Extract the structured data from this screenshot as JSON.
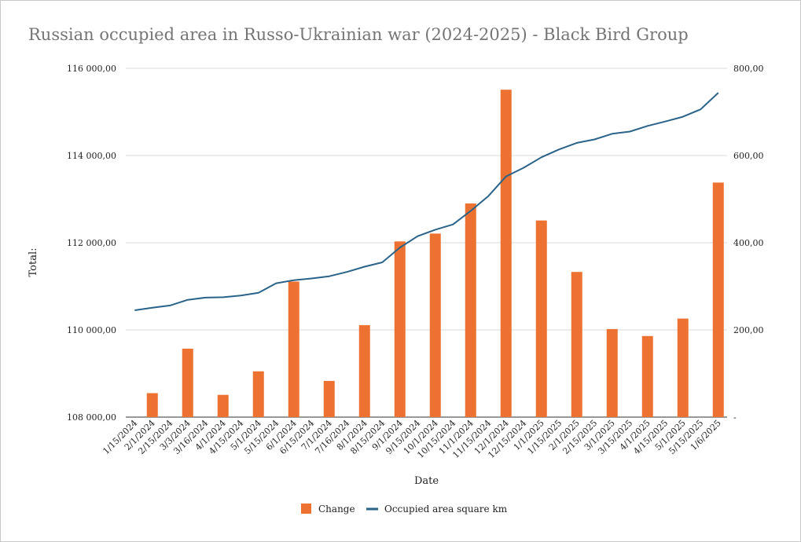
{
  "chart_data": {
    "type": "bar+line",
    "title": "Russian occupied area in Russo-Ukrainian war (2024-2025) - Black Bird Group",
    "xlabel": "Date",
    "ylabel": "Total:",
    "y_left_lim": [
      108000,
      116000
    ],
    "y_left_ticks": [
      "108 000,00",
      "110 000,00",
      "112 000,00",
      "114 000,00",
      "116 000,00"
    ],
    "y_right_lim": [
      0,
      800
    ],
    "y_right_ticks": [
      "-",
      "200,00",
      "400,00",
      "600,00",
      "800,00"
    ],
    "categories": [
      "1/15/2024",
      "2/1/2024",
      "2/15/2024",
      "3/3/2024",
      "3/16/2024",
      "4/1/2024",
      "4/15/2024",
      "5/1/2024",
      "5/15/2024",
      "6/1/2024",
      "6/15/2024",
      "7/1/2024",
      "7/16/2024",
      "8/1/2024",
      "8/15/2024",
      "9/1/2024",
      "9/15/2024",
      "10/1/2024",
      "10/15/2024",
      "11/1/2024",
      "11/15/2024",
      "12/1/2024",
      "12/15/2024",
      "1/1/2025",
      "1/15/2025",
      "2/1/2025",
      "2/15/2025",
      "3/1/2025",
      "3/15/2025",
      "4/1/2025",
      "4/15/2025",
      "5/1/2025",
      "5/15/2025",
      "1/6/2025"
    ],
    "series": [
      {
        "name": "Change",
        "type": "bar",
        "axis": "right",
        "color": "#ED7231",
        "values": [
          0,
          55,
          0,
          157,
          0,
          51,
          0,
          105,
          0,
          311,
          0,
          83,
          0,
          211,
          0,
          403,
          0,
          421,
          0,
          490,
          0,
          751,
          0,
          451,
          0,
          333,
          0,
          202,
          0,
          186,
          0,
          226,
          0,
          538
        ]
      },
      {
        "name": "Occupied area square km",
        "type": "line",
        "axis": "left",
        "color": "#2A6389",
        "values": [
          110450,
          110510,
          110560,
          110690,
          110740,
          110750,
          110790,
          110850,
          111070,
          111140,
          111180,
          111230,
          111330,
          111450,
          111550,
          111890,
          112150,
          112300,
          112420,
          112730,
          113070,
          113520,
          113720,
          113960,
          114140,
          114290,
          114370,
          114500,
          114550,
          114680,
          114780,
          114890,
          115060,
          115440
        ]
      }
    ],
    "legend_position": "bottom",
    "grid": "horizontal"
  }
}
